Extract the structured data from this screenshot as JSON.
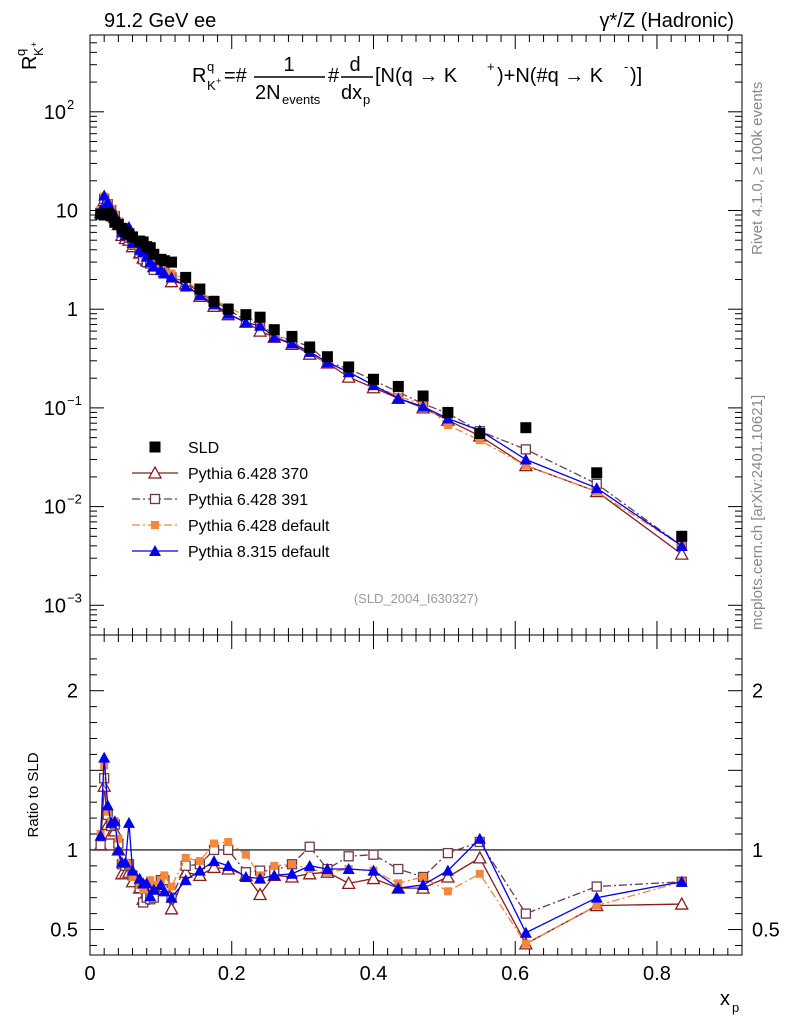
{
  "header": {
    "left": "91.2 GeV ee",
    "right": "γ*/Z (Hadronic)"
  },
  "side_text": {
    "rivet": "Rivet 4.1.0, ≥ 100k events",
    "mcplots": "mcplots.cern.ch [arXiv:2401.10621]"
  },
  "watermark": "(SLD_2004_I630327)",
  "chart_data": [
    {
      "type": "scatter",
      "panel": "main",
      "title": "R^q_{K+} = 1/(2N_events) d/dx_p [N(q → K+) + N(q̄ → K−)]",
      "formula": {
        "lhs": "R",
        "lhs_sup": "q",
        "lhs_sub": "K",
        "lhs_sub_sup": "+",
        "eq": "=#",
        "frac1_num": "1",
        "frac1_den": "2N",
        "frac1_den_sub": "events",
        "hash": "#",
        "frac2_num": "d",
        "frac2_den": "dx",
        "frac2_den_sub": "p",
        "bracket": "[N(q →  K",
        "bracket_sup": "+",
        "bracket_mid": ")+N(#q →  K",
        "bracket_sup2": "-",
        "bracket_end": ")]"
      },
      "ylabel": "R",
      "ylabel_sup": "q",
      "ylabel_sub": "K",
      "ylabel_sub_sup": "+",
      "yscale": "log",
      "ylim": [
        0.0005,
        600
      ],
      "xlim": [
        0,
        0.92
      ],
      "y_ticks": [
        {
          "value": 0.001,
          "label_base": "10",
          "label_exp": "−3"
        },
        {
          "value": 0.01,
          "label_base": "10",
          "label_exp": "−2"
        },
        {
          "value": 0.1,
          "label_base": "10",
          "label_exp": "−1"
        },
        {
          "value": 1,
          "label_base": "1",
          "label_exp": ""
        },
        {
          "value": 10,
          "label_base": "10",
          "label_exp": ""
        },
        {
          "value": 100,
          "label_base": "10",
          "label_exp": "2"
        }
      ],
      "x": [
        0.015,
        0.02,
        0.025,
        0.03,
        0.035,
        0.04,
        0.045,
        0.05,
        0.055,
        0.06,
        0.07,
        0.075,
        0.08,
        0.085,
        0.09,
        0.1,
        0.105,
        0.115,
        0.135,
        0.155,
        0.175,
        0.195,
        0.22,
        0.24,
        0.26,
        0.285,
        0.31,
        0.335,
        0.365,
        0.4,
        0.435,
        0.47,
        0.505,
        0.55,
        0.615,
        0.715,
        0.835
      ],
      "series": [
        {
          "name": "SLD",
          "marker": "filled-square",
          "color": "#000000",
          "values": [
            9.2,
            9.0,
            9.5,
            8.8,
            7.6,
            7.2,
            6.6,
            6.1,
            5.8,
            5.4,
            4.9,
            4.8,
            4.3,
            4.2,
            3.6,
            3.2,
            3.1,
            3.0,
            2.1,
            1.6,
            1.2,
            1.0,
            0.88,
            0.83,
            0.62,
            0.53,
            0.41,
            0.33,
            0.26,
            0.195,
            0.165,
            0.132,
            0.09,
            0.055,
            0.063,
            0.022,
            0.005
          ]
        },
        {
          "name": "Pythia 6.428 370",
          "marker": "open-triangle",
          "line": "solid",
          "color": "#8b1a1a",
          "values": [
            9.5,
            12.6,
            11.0,
            9.7,
            8.5,
            7.2,
            5.6,
            5.2,
            5.0,
            4.3,
            3.7,
            3.3,
            3.1,
            3.0,
            2.7,
            2.6,
            2.4,
            1.9,
            1.8,
            1.35,
            1.07,
            0.88,
            0.74,
            0.6,
            0.52,
            0.44,
            0.35,
            0.285,
            0.205,
            0.16,
            0.125,
            0.1,
            0.075,
            0.052,
            0.026,
            0.0142,
            0.0033
          ]
        },
        {
          "name": "Pythia 6.428 391",
          "marker": "open-square",
          "line": "dashdot",
          "color": "#6b3a4a",
          "values": [
            9.5,
            13.1,
            11.6,
            10.1,
            8.8,
            7.5,
            6.0,
            5.5,
            5.3,
            4.5,
            3.7,
            3.2,
            3.0,
            2.9,
            2.5,
            2.6,
            2.5,
            2.1,
            1.9,
            1.45,
            1.2,
            1.0,
            0.76,
            0.72,
            0.54,
            0.48,
            0.42,
            0.29,
            0.25,
            0.19,
            0.145,
            0.11,
            0.088,
            0.058,
            0.038,
            0.017,
            0.004
          ]
        },
        {
          "name": "Pythia 6.428 default",
          "marker": "filled-square-small",
          "line": "dashdot",
          "color": "#f4873a",
          "values": [
            10.1,
            13.8,
            11.8,
            10.4,
            9.0,
            7.7,
            6.1,
            5.6,
            5.3,
            4.5,
            3.8,
            3.6,
            3.4,
            3.4,
            2.8,
            2.6,
            2.6,
            2.3,
            2.0,
            1.48,
            1.25,
            1.05,
            0.85,
            0.7,
            0.56,
            0.48,
            0.36,
            0.285,
            0.23,
            0.17,
            0.13,
            0.11,
            0.067,
            0.047,
            0.026,
            0.0142,
            0.004
          ]
        },
        {
          "name": "Pythia 8.315 default",
          "marker": "filled-triangle",
          "line": "solid",
          "color": "#0000ee",
          "values": [
            10.0,
            14.2,
            12.2,
            10.3,
            9.0,
            7.2,
            6.1,
            5.6,
            6.8,
            4.7,
            4.0,
            3.8,
            3.4,
            3.0,
            2.7,
            2.5,
            2.3,
            2.1,
            1.7,
            1.39,
            1.12,
            0.9,
            0.73,
            0.68,
            0.52,
            0.45,
            0.37,
            0.29,
            0.23,
            0.17,
            0.125,
            0.103,
            0.078,
            0.059,
            0.03,
            0.0154,
            0.004
          ]
        }
      ],
      "legend_position": "bottom-left"
    },
    {
      "type": "scatter",
      "panel": "ratio",
      "ylabel": "Ratio to SLD",
      "xlabel": "x",
      "xlabel_sub": "p",
      "ylim": [
        0.34,
        2.35
      ],
      "xlim": [
        0,
        0.92
      ],
      "reference_line": 1,
      "y_ticks": [
        0.5,
        1,
        2
      ],
      "y_tick_labels": [
        "0.5",
        "1",
        "2"
      ],
      "x_ticks": [
        0,
        0.2,
        0.4,
        0.6,
        0.8
      ],
      "x_tick_labels": [
        "0",
        "0.2",
        "0.4",
        "0.6",
        "0.8"
      ],
      "series_ratios": [
        {
          "name": "Pythia 6.428 370",
          "values": [
            1.03,
            1.4,
            1.16,
            1.1,
            1.12,
            1.0,
            0.85,
            0.85,
            0.86,
            0.8,
            0.76,
            0.69,
            0.72,
            0.71,
            0.75,
            0.81,
            0.77,
            0.63,
            0.86,
            0.84,
            0.89,
            0.88,
            0.84,
            0.72,
            0.84,
            0.83,
            0.85,
            0.86,
            0.79,
            0.82,
            0.76,
            0.76,
            0.83,
            0.95,
            0.41,
            0.65,
            0.66
          ]
        },
        {
          "name": "Pythia 6.428 391",
          "values": [
            1.03,
            1.45,
            1.22,
            1.15,
            1.16,
            1.04,
            0.91,
            0.9,
            0.91,
            0.84,
            0.76,
            0.67,
            0.7,
            0.69,
            0.7,
            0.81,
            0.81,
            0.7,
            0.9,
            0.91,
            1.0,
            1.0,
            0.86,
            0.87,
            0.87,
            0.91,
            1.02,
            0.88,
            0.96,
            0.97,
            0.88,
            0.83,
            0.98,
            1.05,
            0.6,
            0.77,
            0.8
          ]
        },
        {
          "name": "Pythia 6.428 default",
          "values": [
            1.1,
            1.53,
            1.24,
            1.18,
            1.18,
            1.07,
            0.92,
            0.92,
            0.91,
            0.83,
            0.78,
            0.75,
            0.79,
            0.81,
            0.78,
            0.81,
            0.84,
            0.77,
            0.95,
            0.93,
            1.04,
            1.05,
            0.97,
            0.84,
            0.9,
            0.91,
            0.88,
            0.86,
            0.88,
            0.87,
            0.79,
            0.83,
            0.74,
            0.85,
            0.41,
            0.65,
            0.8
          ]
        },
        {
          "name": "Pythia 8.315 default",
          "values": [
            1.09,
            1.58,
            1.28,
            1.17,
            1.18,
            1.0,
            0.92,
            0.92,
            1.17,
            0.87,
            0.82,
            0.79,
            0.79,
            0.71,
            0.75,
            0.78,
            0.74,
            0.7,
            0.81,
            0.87,
            0.93,
            0.9,
            0.83,
            0.82,
            0.84,
            0.85,
            0.9,
            0.88,
            0.88,
            0.87,
            0.76,
            0.78,
            0.87,
            1.07,
            0.48,
            0.7,
            0.8
          ]
        }
      ]
    }
  ]
}
